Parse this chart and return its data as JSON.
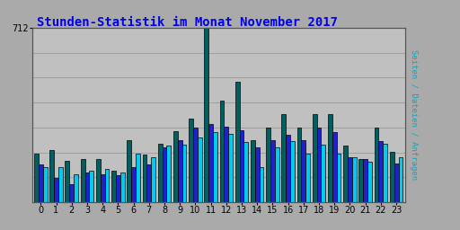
{
  "title": "Stunden-Statistik im Monat November 2017",
  "title_color": "#0000EE",
  "ylabel_right": "Seiten / Dateien / Anfragen",
  "hours": [
    0,
    1,
    2,
    3,
    4,
    5,
    6,
    7,
    8,
    9,
    10,
    11,
    12,
    13,
    14,
    15,
    16,
    17,
    18,
    19,
    20,
    21,
    22,
    23
  ],
  "seiten": [
    200,
    215,
    170,
    175,
    175,
    130,
    255,
    195,
    240,
    290,
    340,
    712,
    415,
    490,
    255,
    305,
    360,
    305,
    360,
    360,
    230,
    175,
    305,
    205
  ],
  "dateien": [
    155,
    100,
    75,
    120,
    115,
    110,
    145,
    155,
    225,
    255,
    305,
    320,
    310,
    295,
    225,
    255,
    275,
    255,
    305,
    285,
    185,
    175,
    250,
    160
  ],
  "anfragen": [
    145,
    145,
    115,
    130,
    135,
    120,
    200,
    185,
    230,
    235,
    265,
    285,
    280,
    245,
    145,
    225,
    250,
    200,
    235,
    200,
    185,
    165,
    240,
    185
  ],
  "color_seiten": "#006060",
  "color_dateien": "#2020CC",
  "color_anfragen": "#00CCEE",
  "bar_edge": "#000000",
  "bg_color": "#AAAAAA",
  "plot_bg": "#C0C0C0",
  "ylim_max": 712,
  "ytick_label": "712",
  "ytick_pos": 712,
  "title_fontsize": 10,
  "tick_fontsize": 7,
  "bar_width": 0.28
}
